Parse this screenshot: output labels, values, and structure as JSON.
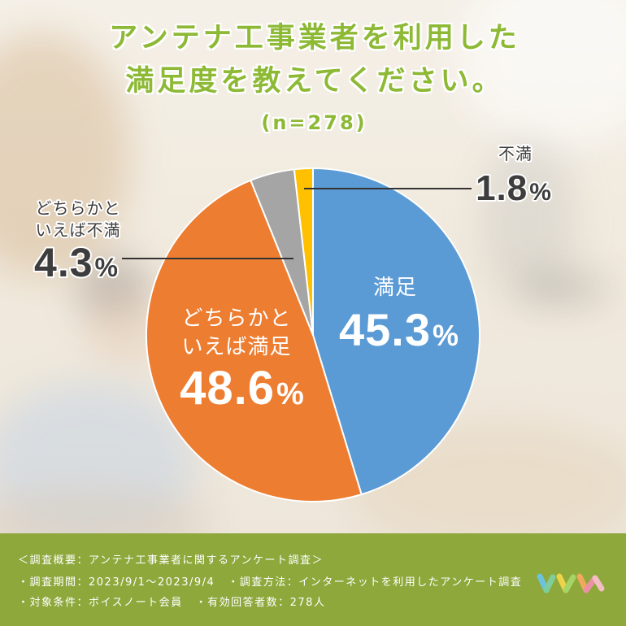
{
  "header": {
    "title_line1": "アンテナ工事業者を利用した",
    "title_line2": "満足度を教えてください。",
    "sample_size": "(n=278)"
  },
  "chart_data": {
    "type": "pie",
    "unit": "%",
    "slices": [
      {
        "label_lines": [
          "満足"
        ],
        "value": 45.3,
        "color": "#5b9bd5"
      },
      {
        "label_lines": [
          "どちらかと",
          "いえば満足"
        ],
        "value": 48.6,
        "color": "#ed7d31"
      },
      {
        "label_lines": [
          "どちらかと",
          "いえば不満"
        ],
        "value": 4.3,
        "color": "#a5a5a5"
      },
      {
        "label_lines": [
          "不満"
        ],
        "value": 1.8,
        "color": "#ffc000"
      }
    ]
  },
  "footer": {
    "heading": "＜調査概要：アンテナ工事業者に関するアンケート調査＞",
    "rows": [
      [
        "・調査期間：2023/9/1〜2023/9/4",
        "・調査方法：インターネットを利用したアンケート調査"
      ],
      [
        "・対象条件：ボイスノート会員",
        "・有効回答者数：278人"
      ]
    ],
    "logo_icon": "colorful-zigzag-logo-icon"
  },
  "colors": {
    "title": "#8db935",
    "footer_bg": "#8ea83c",
    "footer_text": "#ffffff",
    "callout_text": "#3d3d3d",
    "leader_line": "#333333"
  }
}
